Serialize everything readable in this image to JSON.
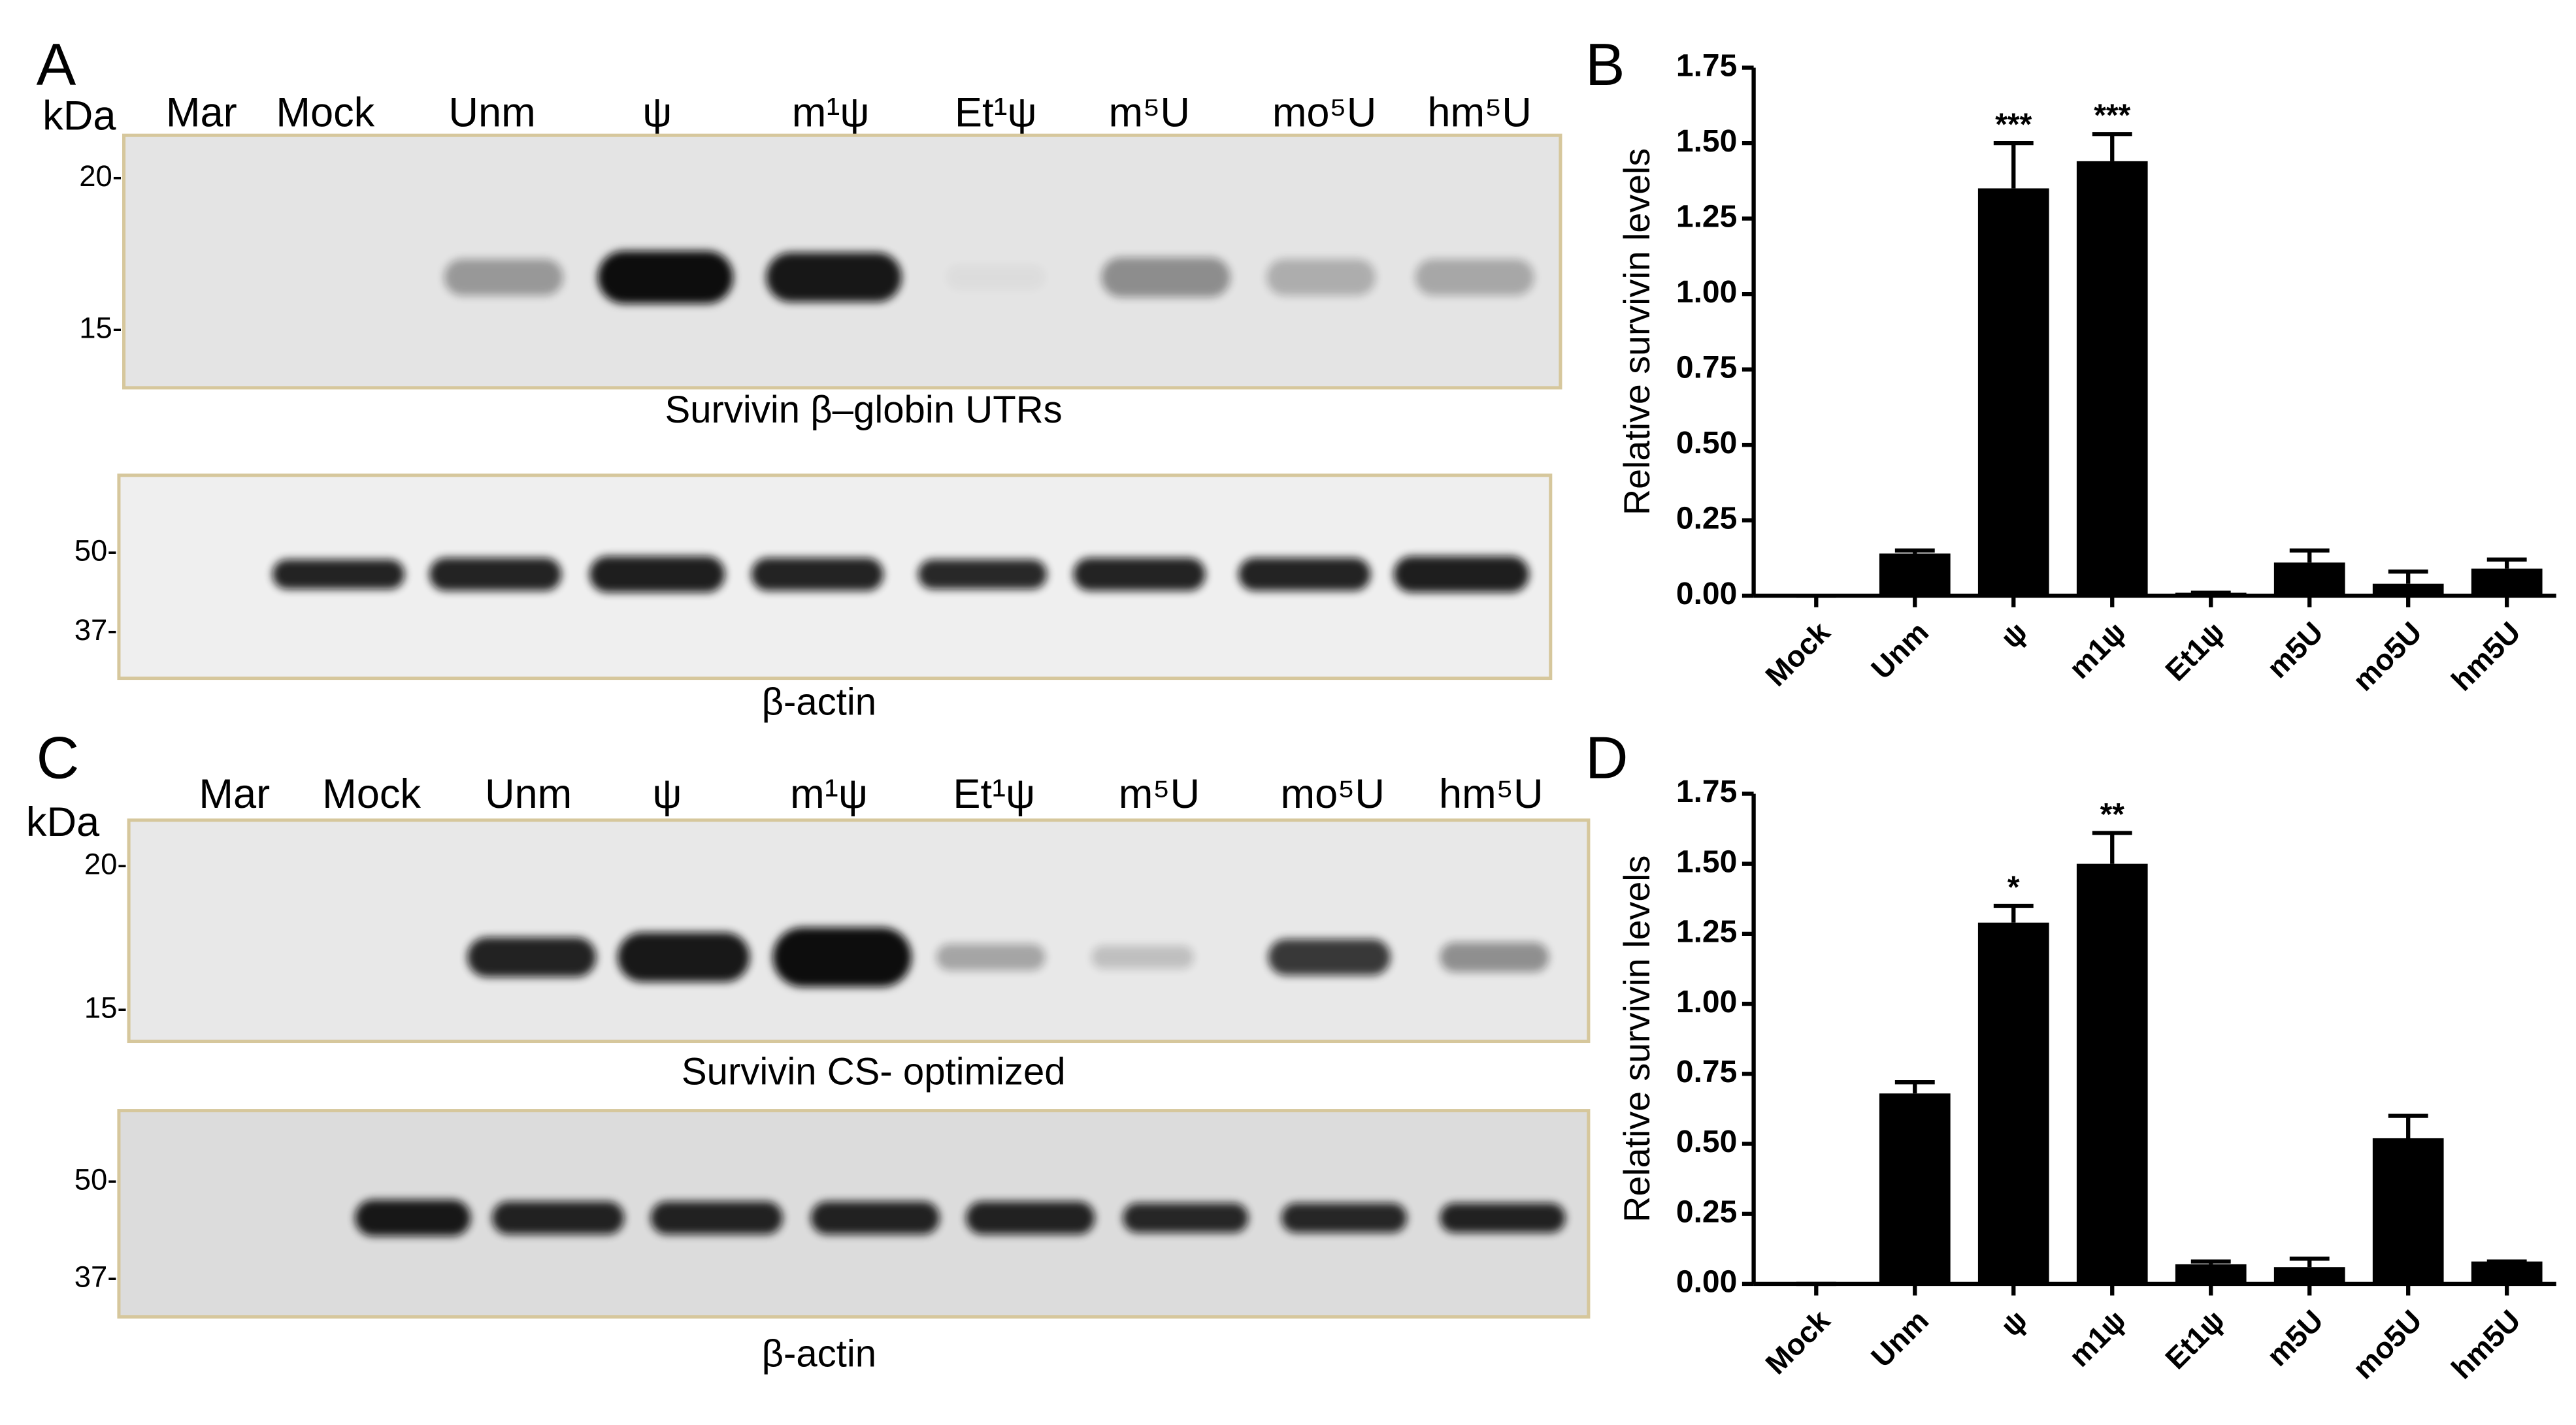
{
  "panels": [
    {
      "label": "A",
      "unit": "kDa",
      "lanes": [
        "Mar",
        "Mock",
        "Unm",
        "ψ",
        "m¹ψ",
        "Et¹ψ",
        "m⁵U",
        "mo⁵U",
        "hm⁵U"
      ],
      "blots": [
        {
          "markers": [
            "20-",
            "15-"
          ],
          "caption": "Survivin β–globin UTRs"
        },
        {
          "markers": [
            "50-",
            "37-"
          ],
          "caption": "β-actin"
        }
      ]
    },
    {
      "label": "C",
      "unit": "kDa",
      "lanes": [
        "Mar",
        "Mock",
        "Unm",
        "ψ",
        "m¹ψ",
        "Et¹ψ",
        "m⁵U",
        "mo⁵U",
        "hm⁵U"
      ],
      "blots": [
        {
          "markers": [
            "20-",
            "15-"
          ],
          "caption": "Survivin CS- optimized"
        },
        {
          "markers": [
            "50-",
            "37-"
          ],
          "caption": "β-actin"
        }
      ]
    }
  ],
  "chart_data": [
    {
      "type": "bar",
      "panel_label": "B",
      "ylabel": "Relative survivin levels",
      "categories": [
        "Mock",
        "Unm",
        "ψ",
        "m1ψ",
        "Et1ψ",
        "m5U",
        "mo5U",
        "hm5U"
      ],
      "values": [
        0,
        0.14,
        1.35,
        1.44,
        0.01,
        0.11,
        0.04,
        0.09
      ],
      "errors": [
        0,
        0.01,
        0.15,
        0.09,
        0,
        0.04,
        0.04,
        0.03
      ],
      "significance": [
        null,
        null,
        "***",
        "***",
        null,
        null,
        null,
        null
      ],
      "color": "#000000",
      "ylim": [
        0,
        1.75
      ],
      "yticks": [
        {
          "value": 0,
          "label": "0.00"
        },
        0.25,
        {
          "value": 0.5,
          "label": "0.50"
        },
        0.75,
        {
          "value": 1,
          "label": "1.00"
        },
        1.25,
        {
          "value": 1.5,
          "label": "1.50"
        },
        1.75
      ]
    },
    {
      "type": "bar",
      "panel_label": "D",
      "ylabel": "Relative survivin levels",
      "categories": [
        "Mock",
        "Unm",
        "ψ",
        "m1ψ",
        "Et1ψ",
        "m5U",
        "mo5U",
        "hm5U"
      ],
      "values": [
        0,
        0.68,
        1.29,
        1.5,
        0.07,
        0.06,
        0.52,
        0.08
      ],
      "errors": [
        0,
        0.04,
        0.06,
        0.11,
        0.01,
        0.03,
        0.08,
        0
      ],
      "significance": [
        null,
        null,
        "*",
        "**",
        null,
        null,
        null,
        null
      ],
      "color": "#000000",
      "ylim": [
        0,
        1.75
      ],
      "yticks": [
        {
          "value": 0,
          "label": "0.00"
        },
        0.25,
        {
          "value": 0.5,
          "label": "0.50"
        },
        0.75,
        {
          "value": 1,
          "label": "1.00"
        },
        1.25,
        {
          "value": 1.5,
          "label": "1.50"
        },
        1.75
      ]
    }
  ]
}
